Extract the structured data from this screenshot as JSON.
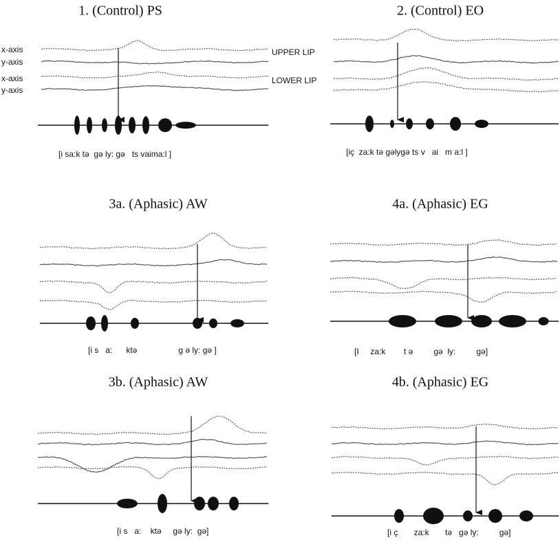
{
  "panels": [
    {
      "title": "1. (Control) PS",
      "transcription": "[i sa:k tə  gə ly: gə   ts vaima:l ]"
    },
    {
      "title": "2. (Control) EO",
      "transcription": "[iç  za:k tə gəlygə ts v   ai   m a:l ]"
    },
    {
      "title": "3a. (Aphasic) AW",
      "transcription": "[i s   a:      ktə                  g ə ly: gə ]"
    },
    {
      "title": "4a. (Aphasic) EG",
      "transcription": "[I     za:k        t ə         gə  ly:         gə]"
    },
    {
      "title": "3b. (Aphasic) AW",
      "transcription": "[i s   a:    ktə     gə ly:  gə]"
    },
    {
      "title": "4b. (Aphasic) EG",
      "transcription": "[i ç       za:k       tə   gə ly:         gə]"
    }
  ],
  "axis_labels": [
    "x-axis",
    "y-axis",
    "x-axis",
    "y-axis"
  ],
  "upper_lip": "UPPER LIP",
  "lower_lip": "LOWER LIP"
}
